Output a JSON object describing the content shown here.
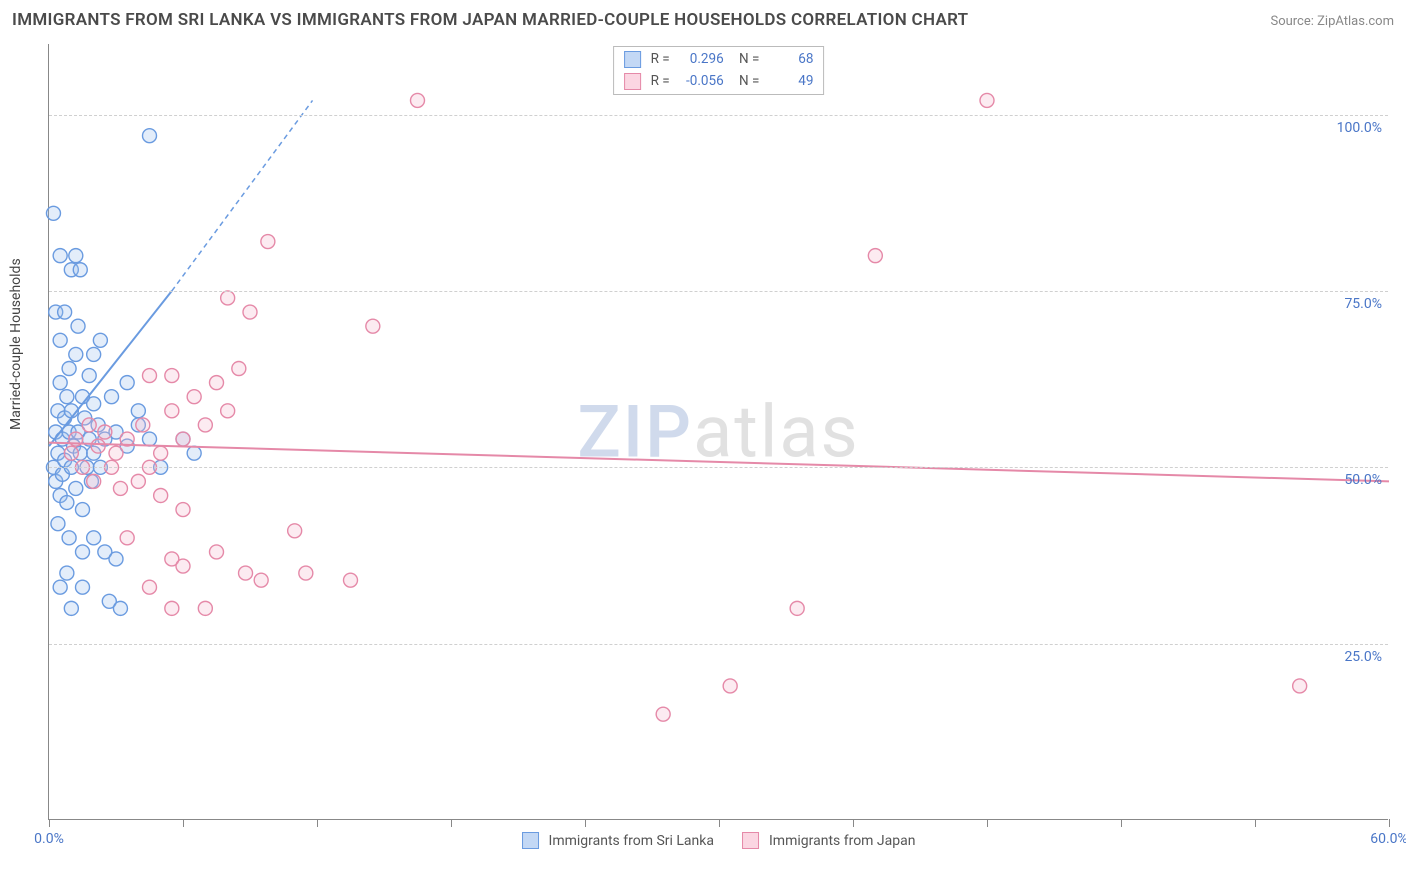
{
  "title": "IMMIGRANTS FROM SRI LANKA VS IMMIGRANTS FROM JAPAN MARRIED-COUPLE HOUSEHOLDS CORRELATION CHART",
  "source_label": "Source: ZipAtlas.com",
  "y_axis_label": "Married-couple Households",
  "watermark": {
    "part1": "ZIP",
    "part2": "atlas"
  },
  "chart": {
    "type": "scatter",
    "xlim": [
      0,
      60
    ],
    "ylim": [
      0,
      110
    ],
    "y_gridlines": [
      {
        "value": 25,
        "label": "25.0%"
      },
      {
        "value": 50,
        "label": "50.0%"
      },
      {
        "value": 75,
        "label": "75.0%"
      },
      {
        "value": 100,
        "label": "100.0%"
      }
    ],
    "x_ticks": [
      0,
      6,
      12,
      18,
      24,
      30,
      36,
      42,
      48,
      54,
      60
    ],
    "x_min_label": "0.0%",
    "x_max_label": "60.0%",
    "grid_color": "#d0d0d0",
    "axis_color": "#888888",
    "background_color": "#ffffff",
    "marker_radius": 7,
    "marker_stroke_width": 1.4,
    "marker_fill_opacity": 0.28,
    "line_width": 2,
    "dash_pattern": "5,4",
    "label_color": "#4a76c7",
    "text_color": "#444444"
  },
  "series": [
    {
      "name": "Immigrants from Sri Lanka",
      "color_stroke": "#6a9be0",
      "color_fill": "#9cc0ee",
      "swatch_fill": "#c3d8f5",
      "swatch_border": "#6a9be0",
      "r_value": "0.296",
      "n_value": "68",
      "trend": {
        "x1": 0,
        "y1": 53,
        "x2": 5.5,
        "y2": 75,
        "x2_dash": 11.8,
        "y2_dash": 102
      },
      "points": [
        [
          0.2,
          50
        ],
        [
          0.3,
          55
        ],
        [
          0.3,
          48
        ],
        [
          0.4,
          58
        ],
        [
          0.4,
          52
        ],
        [
          0.5,
          46
        ],
        [
          0.5,
          62
        ],
        [
          0.5,
          68
        ],
        [
          0.6,
          54
        ],
        [
          0.6,
          49
        ],
        [
          0.7,
          57
        ],
        [
          0.7,
          51
        ],
        [
          0.8,
          60
        ],
        [
          0.8,
          45
        ],
        [
          0.9,
          55
        ],
        [
          0.9,
          64
        ],
        [
          1.0,
          58
        ],
        [
          1.0,
          50
        ],
        [
          1.1,
          53
        ],
        [
          1.2,
          66
        ],
        [
          1.2,
          47
        ],
        [
          1.3,
          70
        ],
        [
          1.3,
          55
        ],
        [
          1.4,
          52
        ],
        [
          1.5,
          60
        ],
        [
          1.5,
          44
        ],
        [
          1.6,
          57
        ],
        [
          1.7,
          50
        ],
        [
          1.8,
          63
        ],
        [
          1.8,
          54
        ],
        [
          1.9,
          48
        ],
        [
          2.0,
          59
        ],
        [
          2.0,
          52
        ],
        [
          2.2,
          56
        ],
        [
          2.3,
          50
        ],
        [
          2.5,
          54
        ],
        [
          0.3,
          72
        ],
        [
          0.7,
          72
        ],
        [
          1.0,
          78
        ],
        [
          1.4,
          78
        ],
        [
          0.5,
          80
        ],
        [
          1.2,
          80
        ],
        [
          0.2,
          86
        ],
        [
          4.5,
          97
        ],
        [
          0.4,
          42
        ],
        [
          0.9,
          40
        ],
        [
          1.5,
          38
        ],
        [
          2.0,
          40
        ],
        [
          2.5,
          38
        ],
        [
          3.0,
          37
        ],
        [
          2.7,
          31
        ],
        [
          3.2,
          30
        ],
        [
          1.5,
          33
        ],
        [
          0.5,
          33
        ],
        [
          0.8,
          35
        ],
        [
          1.0,
          30
        ],
        [
          3.0,
          55
        ],
        [
          3.5,
          53
        ],
        [
          4.0,
          56
        ],
        [
          4.5,
          54
        ],
        [
          5.0,
          50
        ],
        [
          6.0,
          54
        ],
        [
          6.5,
          52
        ],
        [
          4.0,
          58
        ],
        [
          2.8,
          60
        ],
        [
          3.5,
          62
        ],
        [
          2.0,
          66
        ],
        [
          2.3,
          68
        ]
      ]
    },
    {
      "name": "Immigrants from Japan",
      "color_stroke": "#e589a8",
      "color_fill": "#f5b8cc",
      "swatch_fill": "#fbd6e2",
      "swatch_border": "#e589a8",
      "r_value": "-0.056",
      "n_value": "49",
      "trend": {
        "x1": 0,
        "y1": 53.5,
        "x2": 60,
        "y2": 48
      },
      "points": [
        [
          1.0,
          52
        ],
        [
          1.2,
          54
        ],
        [
          1.5,
          50
        ],
        [
          1.8,
          56
        ],
        [
          2.0,
          48
        ],
        [
          2.2,
          53
        ],
        [
          2.5,
          55
        ],
        [
          2.8,
          50
        ],
        [
          3.0,
          52
        ],
        [
          3.2,
          47
        ],
        [
          3.5,
          54
        ],
        [
          4.0,
          48
        ],
        [
          4.2,
          56
        ],
        [
          4.5,
          50
        ],
        [
          4.5,
          63
        ],
        [
          5.0,
          52
        ],
        [
          5.5,
          58
        ],
        [
          6.0,
          54
        ],
        [
          6.5,
          60
        ],
        [
          7.0,
          56
        ],
        [
          7.5,
          62
        ],
        [
          8.0,
          58
        ],
        [
          8.5,
          64
        ],
        [
          5.5,
          63
        ],
        [
          8.0,
          74
        ],
        [
          9.0,
          72
        ],
        [
          14.5,
          70
        ],
        [
          9.8,
          82
        ],
        [
          16.5,
          102
        ],
        [
          5.0,
          46
        ],
        [
          6.0,
          44
        ],
        [
          3.5,
          40
        ],
        [
          5.5,
          37
        ],
        [
          6.0,
          36
        ],
        [
          7.5,
          38
        ],
        [
          8.8,
          35
        ],
        [
          9.5,
          34
        ],
        [
          11.0,
          41
        ],
        [
          11.5,
          35
        ],
        [
          13.5,
          34
        ],
        [
          4.5,
          33
        ],
        [
          5.5,
          30
        ],
        [
          7.0,
          30
        ],
        [
          27.5,
          15
        ],
        [
          30.5,
          19
        ],
        [
          33.5,
          30
        ],
        [
          37.0,
          80
        ],
        [
          42.0,
          102
        ],
        [
          56.0,
          19
        ]
      ]
    }
  ],
  "legend_top": {
    "r_label": "R =",
    "n_label": "N ="
  }
}
